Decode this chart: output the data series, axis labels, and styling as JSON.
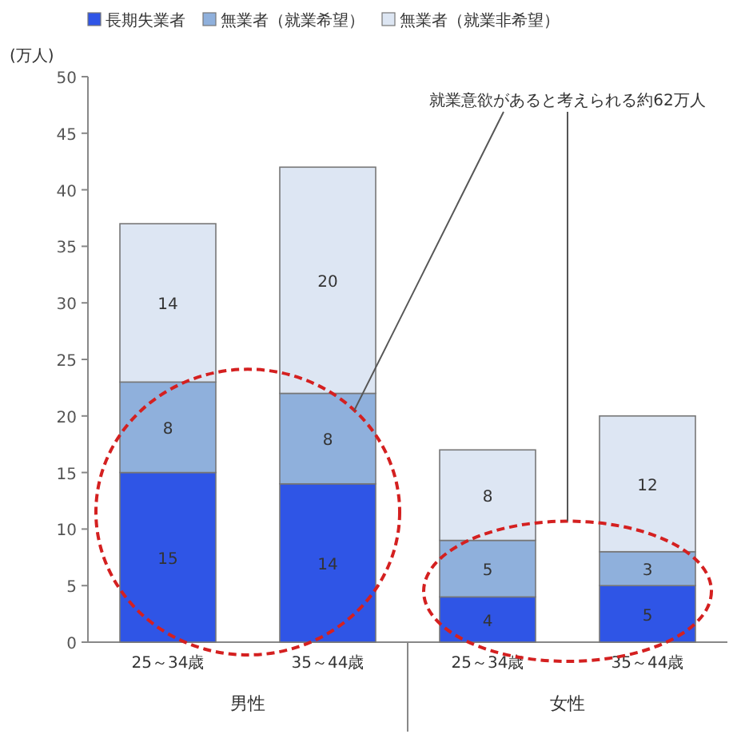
{
  "chart_data": {
    "type": "bar",
    "stacked": true,
    "ylabel": "(万人)",
    "categories": [
      "25～34歳",
      "35～44歳",
      "25～34歳",
      "35～44歳"
    ],
    "series": [
      {
        "name": "長期失業者",
        "color": "#2f55e6",
        "values": [
          15,
          14,
          4,
          5
        ]
      },
      {
        "name": "無業者（就業希望）",
        "color": "#8fb0dc",
        "values": [
          8,
          8,
          5,
          3
        ]
      },
      {
        "name": "無業者（就業非希望）",
        "color": "#dde6f3",
        "values": [
          14,
          20,
          8,
          12
        ]
      }
    ],
    "ylim": [
      0,
      50
    ],
    "yticks": [
      0,
      5,
      10,
      15,
      20,
      25,
      30,
      35,
      40,
      45,
      50
    ],
    "data_labels": true,
    "legend": "top",
    "grid": false,
    "annotations": [
      "就業意欲があると考えられる約62万人",
      "男性",
      "女性"
    ]
  }
}
